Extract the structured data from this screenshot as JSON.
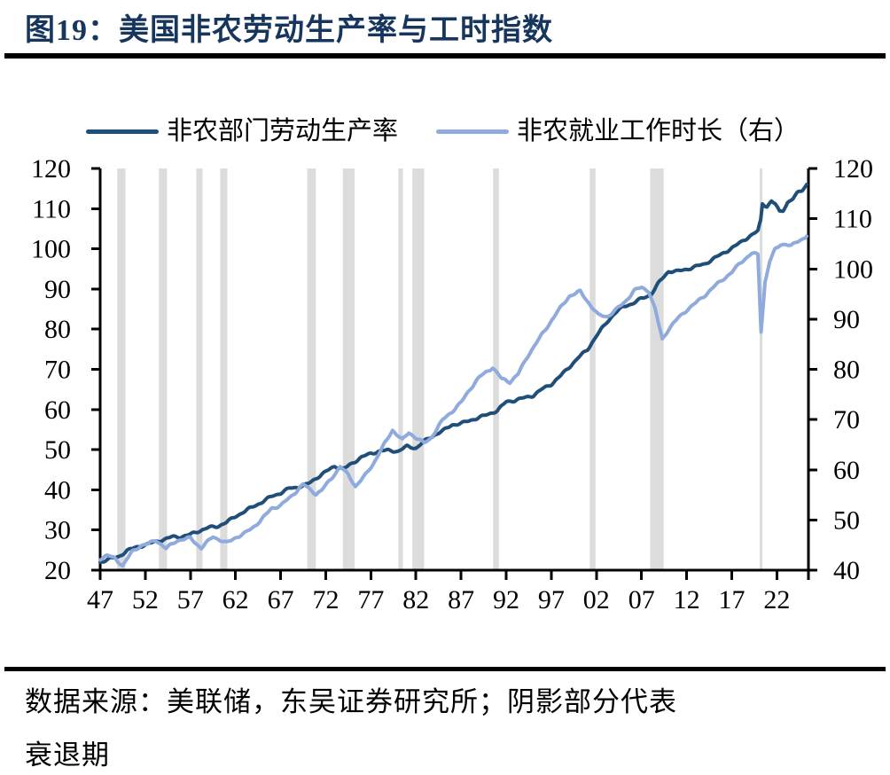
{
  "header": {
    "title": "图19：美国非农劳动生产率与工时指数"
  },
  "legend": [
    {
      "label": "非农部门劳动生产率",
      "color": "#1f4e79"
    },
    {
      "label": "非农就业工作时长（右）",
      "color": "#8faadc"
    }
  ],
  "footer": {
    "source_line1": "数据来源：美联储，东吴证券研究所；阴影部分代表",
    "source_line2": "衰退期"
  },
  "chart_data": {
    "type": "line",
    "title": "美国非农劳动生产率与工时指数",
    "x_range": [
      1947,
      2025.5
    ],
    "x_tick_years": [
      1947,
      1952,
      1957,
      1962,
      1967,
      1972,
      1977,
      1982,
      1987,
      1992,
      1997,
      2002,
      2007,
      2012,
      2017,
      2022
    ],
    "x_tick_labels": [
      "47",
      "52",
      "57",
      "62",
      "67",
      "72",
      "77",
      "82",
      "87",
      "92",
      "97",
      "02",
      "07",
      "12",
      "17",
      "22"
    ],
    "axes": {
      "left": {
        "min": 20,
        "max": 120,
        "step": 10,
        "ticks": [
          20,
          30,
          40,
          50,
          60,
          70,
          80,
          90,
          100,
          110,
          120
        ]
      },
      "right": {
        "min": 40,
        "max": 120,
        "step": 10,
        "ticks": [
          40,
          50,
          60,
          70,
          80,
          90,
          100,
          110,
          120
        ]
      }
    },
    "grid": false,
    "legend_position": "top",
    "colors": {
      "recession_shading": "#dcdcdc",
      "axis": "#000000"
    },
    "shading_note": "阴影部分代表衰退期",
    "recessions": [
      [
        1948.9,
        1949.8
      ],
      [
        1953.5,
        1954.4
      ],
      [
        1957.65,
        1958.35
      ],
      [
        1960.3,
        1961.1
      ],
      [
        1969.95,
        1970.9
      ],
      [
        1973.9,
        1975.2
      ],
      [
        1980.05,
        1980.55
      ],
      [
        1981.6,
        1982.9
      ],
      [
        1990.55,
        1991.2
      ],
      [
        2001.25,
        2001.9
      ],
      [
        2007.95,
        2009.45
      ],
      [
        2020.1,
        2020.4
      ]
    ],
    "series": [
      {
        "name": "非农部门劳动生产率",
        "axis": "left",
        "color": "#1f4e79",
        "wiggle": 0.32,
        "points": [
          [
            1947,
            22
          ],
          [
            1948,
            22.8
          ],
          [
            1949,
            23.3
          ],
          [
            1950,
            24.9
          ],
          [
            1951,
            25.7
          ],
          [
            1952,
            26.3
          ],
          [
            1953,
            27
          ],
          [
            1954,
            27.6
          ],
          [
            1955,
            28.3
          ],
          [
            1956,
            28.3
          ],
          [
            1957,
            28.9
          ],
          [
            1958,
            29.8
          ],
          [
            1959,
            30.6
          ],
          [
            1960,
            30.9
          ],
          [
            1961,
            31.9
          ],
          [
            1962,
            33.4
          ],
          [
            1963,
            34.6
          ],
          [
            1964,
            35.9
          ],
          [
            1965,
            37
          ],
          [
            1966,
            38.4
          ],
          [
            1967,
            39.2
          ],
          [
            1968,
            40.4
          ],
          [
            1969,
            40.7
          ],
          [
            1970,
            41.4
          ],
          [
            1971,
            43
          ],
          [
            1972,
            44.5
          ],
          [
            1973,
            45.9
          ],
          [
            1974,
            45.2
          ],
          [
            1975,
            46.7
          ],
          [
            1976,
            48.2
          ],
          [
            1977,
            49
          ],
          [
            1978,
            49.7
          ],
          [
            1979,
            49.8
          ],
          [
            1980,
            49.6
          ],
          [
            1981,
            50.8
          ],
          [
            1982,
            50.4
          ],
          [
            1983,
            52.2
          ],
          [
            1984,
            53.6
          ],
          [
            1985,
            54.7
          ],
          [
            1986,
            56.2
          ],
          [
            1987,
            56.5
          ],
          [
            1988,
            57.3
          ],
          [
            1989,
            58
          ],
          [
            1990,
            58.8
          ],
          [
            1991,
            59.7
          ],
          [
            1992,
            61.9
          ],
          [
            1993,
            62.3
          ],
          [
            1994,
            62.9
          ],
          [
            1995,
            63.5
          ],
          [
            1996,
            65.1
          ],
          [
            1997,
            66.3
          ],
          [
            1998,
            68.3
          ],
          [
            1999,
            70.6
          ],
          [
            2000,
            72.9
          ],
          [
            2001,
            74.9
          ],
          [
            2002,
            78.3
          ],
          [
            2003,
            81.3
          ],
          [
            2004,
            83.9
          ],
          [
            2005,
            85.6
          ],
          [
            2006,
            86.4
          ],
          [
            2007,
            87.6
          ],
          [
            2008,
            88.5
          ],
          [
            2009,
            91.8
          ],
          [
            2010,
            94.4
          ],
          [
            2011,
            94.4
          ],
          [
            2012,
            94.9
          ],
          [
            2013,
            95.6
          ],
          [
            2014,
            96.2
          ],
          [
            2015,
            97.6
          ],
          [
            2016,
            98.8
          ],
          [
            2017,
            100.2
          ],
          [
            2018,
            101.6
          ],
          [
            2019,
            103.2
          ],
          [
            2019.9,
            104.4
          ],
          [
            2020.2,
            107
          ],
          [
            2020.4,
            111.2
          ],
          [
            2020.9,
            110.6
          ],
          [
            2021.4,
            111.9
          ],
          [
            2021.8,
            111.2
          ],
          [
            2022.3,
            109.2
          ],
          [
            2022.7,
            109.6
          ],
          [
            2023.2,
            111.6
          ],
          [
            2023.8,
            112.5
          ],
          [
            2024.3,
            113.9
          ],
          [
            2024.8,
            114.6
          ],
          [
            2025.3,
            116
          ]
        ]
      },
      {
        "name": "非农就业工作时长（右）",
        "axis": "right",
        "color": "#8faadc",
        "wiggle": 0.28,
        "points": [
          [
            1947,
            42.3
          ],
          [
            1947.8,
            42.9
          ],
          [
            1948.6,
            42.4
          ],
          [
            1949.5,
            40.9
          ],
          [
            1950.5,
            43.6
          ],
          [
            1951.5,
            44.9
          ],
          [
            1952.3,
            45.2
          ],
          [
            1953.2,
            46
          ],
          [
            1954.3,
            44.3
          ],
          [
            1955.5,
            45.9
          ],
          [
            1957,
            46.4
          ],
          [
            1958.2,
            44.4
          ],
          [
            1959.5,
            46.7
          ],
          [
            1961,
            45.4
          ],
          [
            1962,
            46.5
          ],
          [
            1963,
            47.3
          ],
          [
            1964,
            48.6
          ],
          [
            1965,
            50.3
          ],
          [
            1966,
            52.3
          ],
          [
            1967,
            52.9
          ],
          [
            1968,
            54.4
          ],
          [
            1969.5,
            57.1
          ],
          [
            1970.9,
            55.2
          ],
          [
            1971.5,
            55.8
          ],
          [
            1972.5,
            58
          ],
          [
            1973.6,
            60.6
          ],
          [
            1974.5,
            59
          ],
          [
            1975.3,
            56.7
          ],
          [
            1976.3,
            58.7
          ],
          [
            1977.3,
            61.3
          ],
          [
            1978.5,
            65.1
          ],
          [
            1979.4,
            67.9
          ],
          [
            1980.5,
            65.9
          ],
          [
            1981.2,
            67.4
          ],
          [
            1982,
            66.4
          ],
          [
            1982.9,
            65.3
          ],
          [
            1983.6,
            66.2
          ],
          [
            1985,
            70
          ],
          [
            1986,
            71.6
          ],
          [
            1987,
            73.4
          ],
          [
            1988,
            76.1
          ],
          [
            1989,
            78.4
          ],
          [
            1990.5,
            80.4
          ],
          [
            1991.5,
            78.1
          ],
          [
            1992.4,
            77.5
          ],
          [
            1993.3,
            79
          ],
          [
            1994.5,
            83
          ],
          [
            1996,
            87
          ],
          [
            1997.5,
            91
          ],
          [
            1999,
            94.6
          ],
          [
            2000.2,
            95.5
          ],
          [
            2001,
            93.6
          ],
          [
            2002.2,
            90.8
          ],
          [
            2003.2,
            90.5
          ],
          [
            2004.2,
            91.9
          ],
          [
            2005.2,
            93.5
          ],
          [
            2006.2,
            95.7
          ],
          [
            2007,
            96.3
          ],
          [
            2007.8,
            95.6
          ],
          [
            2008.5,
            92
          ],
          [
            2009.3,
            86
          ],
          [
            2010,
            88
          ],
          [
            2011,
            90.1
          ],
          [
            2012,
            91.8
          ],
          [
            2013,
            93.2
          ],
          [
            2014,
            94.7
          ],
          [
            2015,
            96.4
          ],
          [
            2016,
            97.9
          ],
          [
            2017,
            99.3
          ],
          [
            2018,
            101.3
          ],
          [
            2019.2,
            103.1
          ],
          [
            2019.9,
            102.8
          ],
          [
            2020.25,
            87.6
          ],
          [
            2020.7,
            97.5
          ],
          [
            2021.2,
            101.5
          ],
          [
            2021.8,
            103.8
          ],
          [
            2022.4,
            104.8
          ],
          [
            2023,
            105
          ],
          [
            2023.6,
            104.6
          ],
          [
            2024.3,
            105.4
          ],
          [
            2025.3,
            106.5
          ]
        ]
      }
    ]
  }
}
